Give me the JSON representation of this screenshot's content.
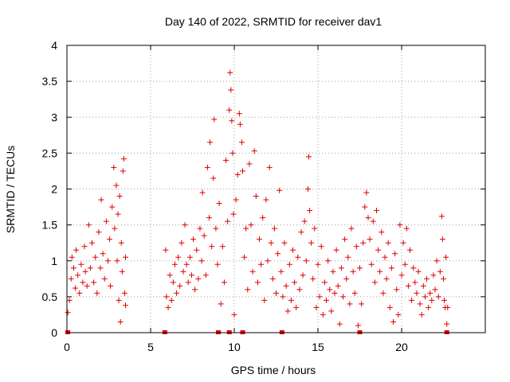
{
  "chart_data": {
    "type": "scatter",
    "title": "Day 140 of 2022, SRMTID for receiver dav1",
    "xlabel": "GPS time / hours",
    "ylabel": "SRMTID / TECUs",
    "xlim": [
      0,
      25
    ],
    "ylim": [
      0,
      4
    ],
    "grid": true,
    "marker": "+",
    "color": "#e00000",
    "x_ticks": [
      0,
      5,
      10,
      15,
      20
    ],
    "y_ticks": [
      0,
      0.5,
      1,
      1.5,
      2,
      2.5,
      3,
      3.5,
      4
    ],
    "x_tick_labels": [
      "0",
      "5",
      "10",
      "15",
      "20"
    ],
    "y_tick_labels": [
      "0",
      "0.5",
      "1",
      "1.5",
      "2",
      "2.5",
      "3",
      "3.5",
      "4"
    ],
    "zero_markers_x": [
      0.05,
      5.85,
      9.05,
      9.7,
      10.5,
      12.85,
      17.5,
      22.7
    ],
    "series": [
      {
        "name": "dav1",
        "points": [
          [
            0.05,
            0.28
          ],
          [
            0.15,
            0.45
          ],
          [
            0.25,
            0.75
          ],
          [
            0.3,
            1.05
          ],
          [
            0.4,
            0.9
          ],
          [
            0.5,
            0.62
          ],
          [
            0.55,
            1.15
          ],
          [
            0.65,
            0.8
          ],
          [
            0.75,
            0.55
          ],
          [
            0.85,
            0.95
          ],
          [
            0.95,
            0.7
          ],
          [
            1.05,
            1.2
          ],
          [
            1.1,
            0.85
          ],
          [
            1.2,
            0.65
          ],
          [
            1.3,
            1.5
          ],
          [
            1.4,
            0.9
          ],
          [
            1.5,
            1.25
          ],
          [
            1.6,
            0.7
          ],
          [
            1.7,
            1.05
          ],
          [
            1.8,
            0.55
          ],
          [
            1.9,
            1.4
          ],
          [
            2.0,
            0.9
          ],
          [
            2.05,
            1.85
          ],
          [
            2.15,
            1.1
          ],
          [
            2.25,
            0.75
          ],
          [
            2.35,
            1.55
          ],
          [
            2.45,
            1.0
          ],
          [
            2.55,
            1.3
          ],
          [
            2.6,
            0.65
          ],
          [
            2.7,
            1.75
          ],
          [
            2.8,
            2.3
          ],
          [
            2.85,
            1.45
          ],
          [
            2.95,
            2.05
          ],
          [
            3.0,
            1.0
          ],
          [
            3.05,
            1.65
          ],
          [
            3.1,
            0.45
          ],
          [
            3.15,
            1.9
          ],
          [
            3.2,
            0.15
          ],
          [
            3.25,
            1.25
          ],
          [
            3.3,
            0.85
          ],
          [
            3.35,
            2.25
          ],
          [
            3.4,
            2.42
          ],
          [
            3.45,
            0.55
          ],
          [
            3.5,
            0.38
          ],
          [
            3.5,
            1.05
          ],
          [
            5.9,
            1.15
          ],
          [
            5.95,
            0.5
          ],
          [
            6.05,
            0.35
          ],
          [
            6.15,
            0.8
          ],
          [
            6.25,
            0.45
          ],
          [
            6.35,
            0.7
          ],
          [
            6.45,
            0.95
          ],
          [
            6.55,
            0.55
          ],
          [
            6.65,
            1.05
          ],
          [
            6.75,
            0.65
          ],
          [
            6.85,
            1.25
          ],
          [
            6.95,
            0.85
          ],
          [
            7.05,
            1.5
          ],
          [
            7.15,
            0.95
          ],
          [
            7.25,
            0.7
          ],
          [
            7.35,
            1.05
          ],
          [
            7.45,
            0.8
          ],
          [
            7.55,
            1.3
          ],
          [
            7.65,
            0.6
          ],
          [
            7.75,
            1.15
          ],
          [
            7.85,
            0.75
          ],
          [
            7.95,
            1.45
          ],
          [
            8.05,
            1.0
          ],
          [
            8.1,
            1.95
          ],
          [
            8.2,
            1.35
          ],
          [
            8.3,
            0.8
          ],
          [
            8.4,
            2.3
          ],
          [
            8.5,
            1.6
          ],
          [
            8.55,
            2.65
          ],
          [
            8.65,
            1.2
          ],
          [
            8.75,
            2.15
          ],
          [
            8.8,
            2.97
          ],
          [
            8.9,
            1.45
          ],
          [
            9.0,
            0.95
          ],
          [
            9.1,
            1.8
          ],
          [
            9.2,
            0.4
          ],
          [
            9.3,
            1.2
          ],
          [
            9.4,
            0.7
          ],
          [
            9.5,
            2.4
          ],
          [
            9.6,
            1.55
          ],
          [
            9.7,
            3.1
          ],
          [
            9.75,
            3.62
          ],
          [
            9.8,
            3.38
          ],
          [
            9.85,
            2.95
          ],
          [
            9.9,
            2.5
          ],
          [
            9.95,
            1.65
          ],
          [
            10.0,
            0.25
          ],
          [
            10.1,
            1.85
          ],
          [
            10.2,
            2.2
          ],
          [
            10.3,
            3.05
          ],
          [
            10.35,
            2.9
          ],
          [
            10.45,
            2.65
          ],
          [
            10.5,
            2.25
          ],
          [
            10.6,
            1.05
          ],
          [
            10.7,
            1.45
          ],
          [
            10.8,
            0.6
          ],
          [
            10.9,
            2.35
          ],
          [
            11.0,
            1.5
          ],
          [
            11.1,
            0.85
          ],
          [
            11.2,
            2.53
          ],
          [
            11.3,
            1.9
          ],
          [
            11.4,
            0.7
          ],
          [
            11.5,
            1.3
          ],
          [
            11.6,
            0.95
          ],
          [
            11.7,
            1.6
          ],
          [
            11.8,
            0.45
          ],
          [
            11.9,
            1.85
          ],
          [
            12.0,
            1.0
          ],
          [
            12.1,
            2.3
          ],
          [
            12.2,
            1.25
          ],
          [
            12.3,
            0.75
          ],
          [
            12.4,
            1.45
          ],
          [
            12.5,
            0.55
          ],
          [
            12.6,
            1.1
          ],
          [
            12.7,
            1.98
          ],
          [
            12.8,
            0.85
          ],
          [
            12.9,
            0.5
          ],
          [
            13.0,
            1.25
          ],
          [
            13.1,
            0.65
          ],
          [
            13.2,
            0.3
          ],
          [
            13.3,
            0.95
          ],
          [
            13.4,
            0.45
          ],
          [
            13.5,
            1.15
          ],
          [
            13.6,
            0.7
          ],
          [
            13.7,
            0.35
          ],
          [
            13.8,
            1.05
          ],
          [
            13.9,
            0.6
          ],
          [
            14.0,
            1.4
          ],
          [
            14.1,
            0.8
          ],
          [
            14.2,
            1.55
          ],
          [
            14.3,
            1.0
          ],
          [
            14.4,
            2.0
          ],
          [
            14.45,
            2.45
          ],
          [
            14.5,
            1.7
          ],
          [
            14.6,
            1.25
          ],
          [
            14.7,
            0.75
          ],
          [
            14.8,
            1.45
          ],
          [
            14.9,
            0.35
          ],
          [
            15.0,
            0.95
          ],
          [
            15.1,
            0.5
          ],
          [
            15.2,
            1.2
          ],
          [
            15.3,
            0.25
          ],
          [
            15.4,
            0.7
          ],
          [
            15.5,
            0.45
          ],
          [
            15.6,
            1.0
          ],
          [
            15.7,
            0.6
          ],
          [
            15.8,
            0.3
          ],
          [
            15.9,
            0.85
          ],
          [
            16.0,
            0.55
          ],
          [
            16.1,
            1.15
          ],
          [
            16.2,
            0.65
          ],
          [
            16.3,
            0.12
          ],
          [
            16.4,
            0.9
          ],
          [
            16.5,
            0.5
          ],
          [
            16.6,
            1.3
          ],
          [
            16.7,
            0.75
          ],
          [
            16.8,
            1.05
          ],
          [
            16.9,
            0.4
          ],
          [
            17.0,
            1.45
          ],
          [
            17.1,
            0.85
          ],
          [
            17.2,
            0.55
          ],
          [
            17.3,
            1.2
          ],
          [
            17.4,
            0.1
          ],
          [
            17.5,
            0.9
          ],
          [
            17.6,
            0.4
          ],
          [
            17.7,
            1.25
          ],
          [
            17.8,
            1.75
          ],
          [
            17.9,
            1.95
          ],
          [
            18.0,
            1.6
          ],
          [
            18.1,
            1.3
          ],
          [
            18.2,
            0.95
          ],
          [
            18.3,
            1.55
          ],
          [
            18.4,
            0.7
          ],
          [
            18.5,
            1.7
          ],
          [
            18.6,
            1.15
          ],
          [
            18.7,
            0.85
          ],
          [
            18.8,
            1.4
          ],
          [
            18.9,
            0.55
          ],
          [
            19.0,
            1.05
          ],
          [
            19.1,
            0.75
          ],
          [
            19.2,
            1.25
          ],
          [
            19.3,
            0.35
          ],
          [
            19.4,
            0.9
          ],
          [
            19.5,
            0.15
          ],
          [
            19.6,
            1.1
          ],
          [
            19.7,
            0.6
          ],
          [
            19.8,
            0.25
          ],
          [
            19.9,
            1.5
          ],
          [
            20.0,
            0.8
          ],
          [
            20.1,
            1.25
          ],
          [
            20.2,
            0.95
          ],
          [
            20.3,
            1.45
          ],
          [
            20.4,
            0.65
          ],
          [
            20.5,
            1.15
          ],
          [
            20.6,
            0.45
          ],
          [
            20.7,
            0.9
          ],
          [
            20.8,
            0.7
          ],
          [
            20.9,
            0.55
          ],
          [
            21.0,
            0.85
          ],
          [
            21.1,
            0.4
          ],
          [
            21.2,
            0.25
          ],
          [
            21.3,
            0.65
          ],
          [
            21.4,
            0.5
          ],
          [
            21.5,
            0.75
          ],
          [
            21.6,
            0.35
          ],
          [
            21.7,
            0.55
          ],
          [
            21.8,
            0.45
          ],
          [
            21.9,
            0.8
          ],
          [
            22.0,
            0.6
          ],
          [
            22.1,
            1.0
          ],
          [
            22.2,
            0.5
          ],
          [
            22.3,
            0.85
          ],
          [
            22.4,
            1.62
          ],
          [
            22.45,
            1.3
          ],
          [
            22.5,
            0.75
          ],
          [
            22.55,
            0.45
          ],
          [
            22.6,
            0.35
          ],
          [
            22.65,
            1.05
          ],
          [
            22.7,
            0.12
          ],
          [
            22.75,
            0.35
          ]
        ]
      }
    ]
  }
}
